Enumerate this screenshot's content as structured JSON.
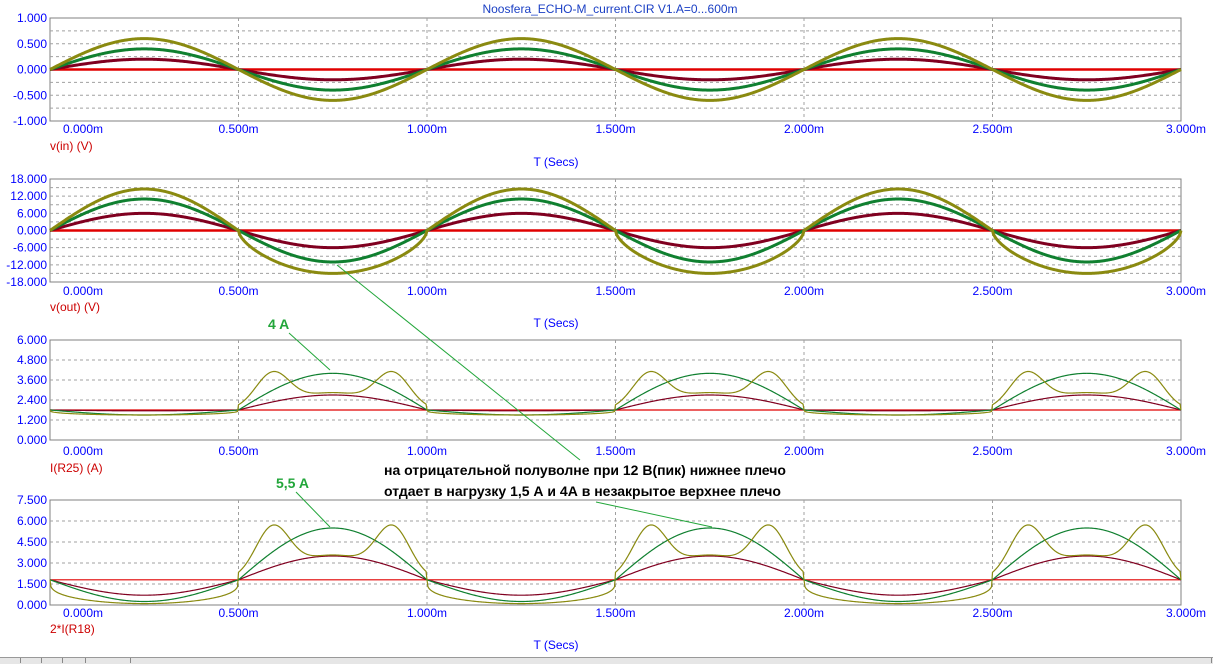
{
  "title": "Noosfera_ECHO-M_current.CIR V1.A=0...600m",
  "x_axis": {
    "label": "T (Secs)",
    "ticks": [
      "0.000m",
      "0.500m",
      "1.000m",
      "1.500m",
      "2.000m",
      "2.500m",
      "3.000m"
    ],
    "range": [
      0,
      3.0
    ],
    "unit": "ms"
  },
  "colors": {
    "zero_line": "#e00000",
    "dark_red": "#800020",
    "green": "#108030",
    "olive": "#8a8a10",
    "grid": "#a0a0a0",
    "text_blue": "#0000ff"
  },
  "annotations": {
    "label_4a": "4 A",
    "label_55a": "5,5 A",
    "note_line1": "на отрицательной полуволне при 12 В(пик) нижнее плечо",
    "note_line2": "отдает в нагрузку 1,5 А и 4А в незакрытое верхнее плечо"
  },
  "chart_data": [
    {
      "type": "line",
      "trace_label": "v(in) (V)",
      "xlabel": "T (Secs)",
      "ylim": [
        -1.0,
        1.0
      ],
      "y_ticks": [
        "1.000",
        "0.500",
        "0.000",
        "-0.500",
        "-1.000"
      ],
      "frequency_khz": 1.0,
      "series": [
        {
          "color": "zero",
          "amplitude": 0.0
        },
        {
          "color": "dark_red",
          "amplitude": 0.2
        },
        {
          "color": "green",
          "amplitude": 0.4
        },
        {
          "color": "olive",
          "amplitude": 0.6
        }
      ]
    },
    {
      "type": "line",
      "trace_label": "v(out) (V)",
      "xlabel": "T (Secs)",
      "ylim": [
        -18.0,
        18.0
      ],
      "y_ticks": [
        "18.000",
        "12.000",
        "6.000",
        "0.000",
        "-6.000",
        "-12.000",
        "-18.000"
      ],
      "frequency_khz": 1.0,
      "series": [
        {
          "color": "zero",
          "amplitude": 0.0
        },
        {
          "color": "dark_red",
          "amplitude": 6.0
        },
        {
          "color": "green",
          "amplitude": 11.0
        },
        {
          "color": "olive",
          "pos_amplitude": 14.5,
          "neg_amplitude": 15.0
        }
      ]
    },
    {
      "type": "line",
      "trace_label": "I(R25) (A)",
      "xlabel": "",
      "ylim": [
        0.0,
        6.0
      ],
      "y_ticks": [
        "6.000",
        "4.800",
        "3.600",
        "2.400",
        "1.200",
        "0.000"
      ],
      "frequency_khz": 1.0,
      "series": [
        {
          "color": "zero",
          "baseline": 1.8
        },
        {
          "color": "dark_red",
          "baseline": 1.8,
          "neg_half_peak": 2.7,
          "pos_half_dip": 1.75
        },
        {
          "color": "green",
          "baseline": 1.8,
          "neg_half_peak": 4.0,
          "pos_half_dip": 1.5
        },
        {
          "color": "olive",
          "baseline": 1.8,
          "side_peaks": 4.1,
          "center_dip": 2.5,
          "pos_half_level": 1.5
        }
      ]
    },
    {
      "type": "line",
      "trace_label": "2*I(R18)",
      "xlabel": "T (Secs)",
      "ylim": [
        0.0,
        7.5
      ],
      "y_ticks": [
        "7.500",
        "6.000",
        "4.500",
        "3.000",
        "1.500",
        "0.000"
      ],
      "frequency_khz": 1.0,
      "series": [
        {
          "color": "zero",
          "baseline": 1.8
        },
        {
          "color": "dark_red",
          "baseline": 1.8,
          "neg_half_peak": 3.5,
          "pos_half_dip": 0.7
        },
        {
          "color": "green",
          "baseline": 1.8,
          "neg_half_peak": 5.5,
          "pos_half_dip": 0.25
        },
        {
          "color": "olive",
          "baseline": 1.8,
          "side_peaks": 5.7,
          "center_dip": 4.5,
          "pos_half_dip": 0.1
        }
      ]
    }
  ]
}
